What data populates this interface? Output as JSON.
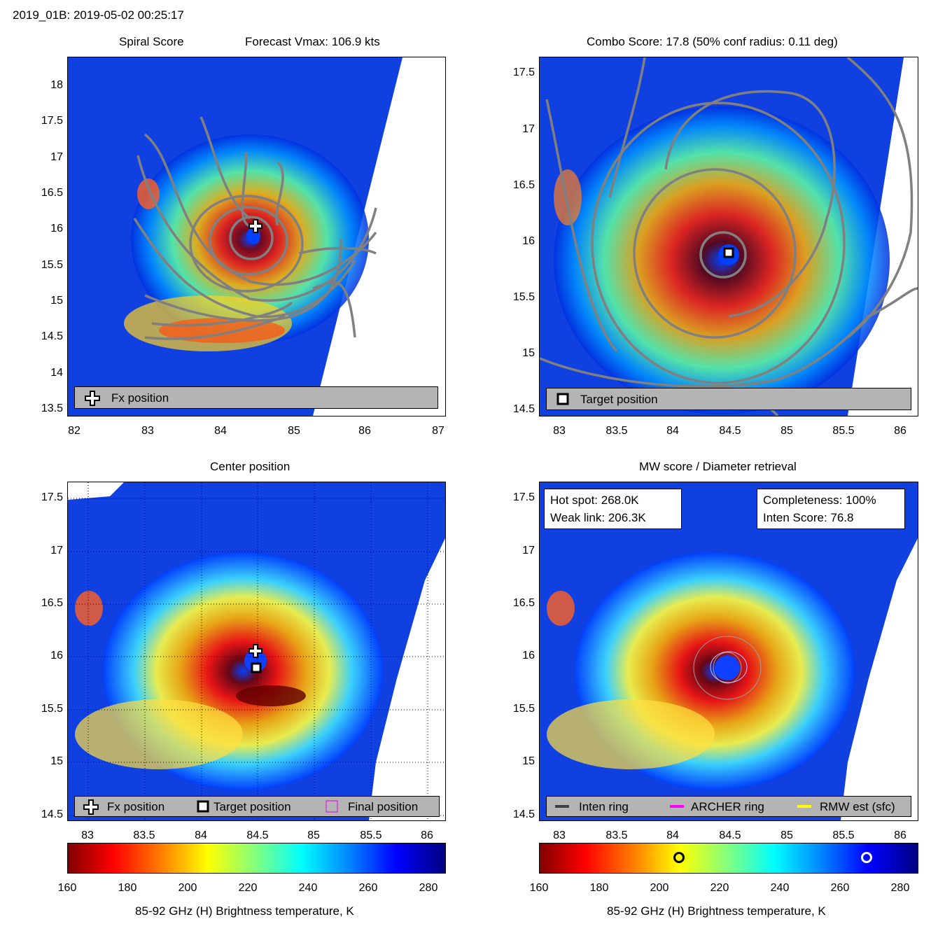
{
  "header": "2019_01B: 2019-05-02 00:25:17",
  "panels": {
    "spiral": {
      "title_left": "Spiral Score",
      "title_right": "Forecast Vmax: 106.9 kts",
      "yticks": [
        "18",
        "17.5",
        "17",
        "16.5",
        "16",
        "15.5",
        "15",
        "14.5",
        "14",
        "13.5"
      ],
      "xticks": [
        "82",
        "83",
        "84",
        "85",
        "86",
        "87"
      ],
      "legend": "Fx position"
    },
    "combo": {
      "title": "Combo Score: 17.8  (50% conf radius: 0.11 deg)",
      "yticks": [
        "17.5",
        "17",
        "16.5",
        "16",
        "15.5",
        "15",
        "14.5"
      ],
      "xticks": [
        "83",
        "83.5",
        "84",
        "84.5",
        "85",
        "85.5",
        "86"
      ],
      "legend": "Target position"
    },
    "center": {
      "title": "Center position",
      "yticks": [
        "17.5",
        "17",
        "16.5",
        "16",
        "15.5",
        "15",
        "14.5"
      ],
      "xticks": [
        "83",
        "83.5",
        "84",
        "84.5",
        "85",
        "85.5",
        "86"
      ],
      "legend_fx": "Fx position",
      "legend_target": "Target position",
      "legend_final": "Final position"
    },
    "mw": {
      "title": "MW score / Diameter retrieval",
      "yticks": [
        "17.5",
        "17",
        "16.5",
        "16",
        "15.5",
        "15",
        "14.5"
      ],
      "xticks": [
        "83",
        "83.5",
        "84",
        "84.5",
        "85",
        "85.5",
        "86"
      ],
      "hot_spot": "Hot spot: 268.0K",
      "weak_link": "Weak link: 206.3K",
      "completeness": "Completeness: 100%",
      "inten_score": "Inten Score: 76.8",
      "legend_inten": "Inten ring",
      "legend_archer": "ARCHER ring",
      "legend_rmw": "RMW est (sfc)"
    }
  },
  "colorbar": {
    "ticks": [
      "160",
      "180",
      "200",
      "220",
      "240",
      "260",
      "280"
    ],
    "label": "85-92 GHz (H) Brightness temperature, K",
    "weak_link_value": 206.3,
    "hot_spot_value": 268.0
  },
  "chart_data": [
    {
      "type": "heatmap",
      "title": "Spiral Score",
      "xlim": [
        82,
        87
      ],
      "ylim": [
        13.4,
        18.4
      ],
      "fx_position": {
        "lon": 84.5,
        "lat": 16.05
      },
      "annotation": "Forecast Vmax: 106.9 kts"
    },
    {
      "type": "heatmap",
      "title": "Combo Score: 17.8  (50% conf radius: 0.11 deg)",
      "xlim": [
        82.8,
        86.15
      ],
      "ylim": [
        14.45,
        17.65
      ],
      "target_position": {
        "lon": 84.5,
        "lat": 15.9
      }
    },
    {
      "type": "heatmap",
      "title": "Center position",
      "xlim": [
        82.8,
        86.15
      ],
      "ylim": [
        14.45,
        17.65
      ],
      "fx_position": {
        "lon": 84.5,
        "lat": 16.03
      },
      "target_position": {
        "lon": 84.5,
        "lat": 15.9
      },
      "grid": true
    },
    {
      "type": "heatmap",
      "title": "MW score / Diameter retrieval",
      "xlim": [
        82.8,
        86.15
      ],
      "ylim": [
        14.45,
        17.65
      ],
      "hot_spot_K": 268.0,
      "weak_link_K": 206.3,
      "completeness_pct": 100,
      "inten_score": 76.8
    }
  ]
}
